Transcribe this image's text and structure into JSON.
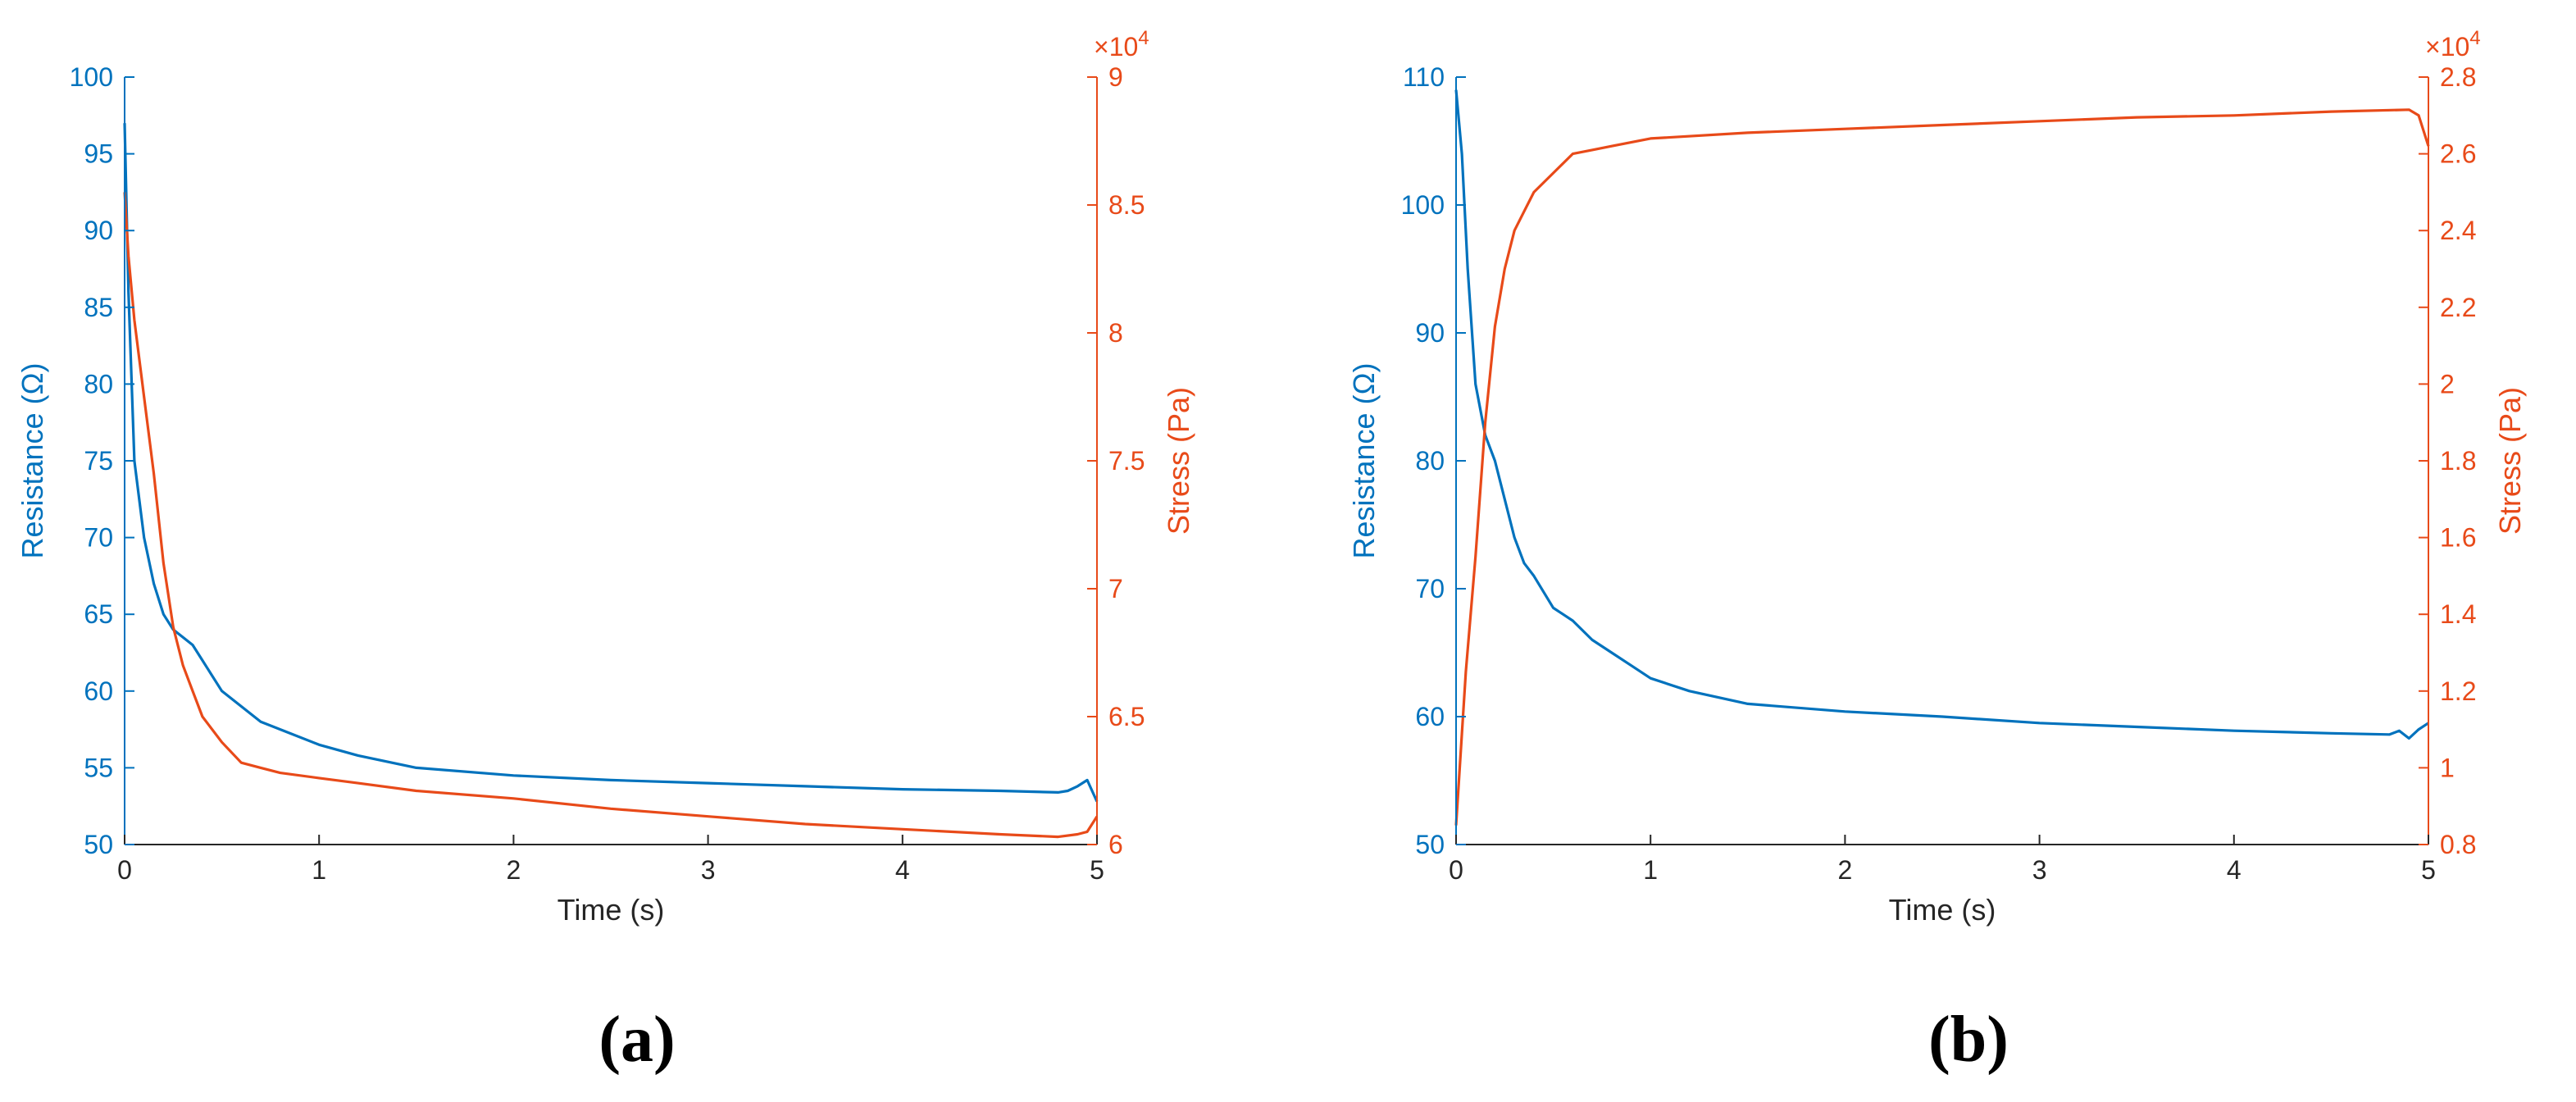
{
  "colors": {
    "resistance": "#0072BD",
    "stress": "#E84A19",
    "axis": "#262626"
  },
  "chart_data": [
    {
      "type": "line",
      "panel_label": "(a)",
      "xlabel": "Time (s)",
      "ylabel_left": "Resistance (Ω)",
      "ylabel_right": "Stress (Pa)",
      "right_multiplier_base": "×10",
      "right_multiplier_exp": "4",
      "xlim": [
        0,
        5
      ],
      "ylim_left": [
        50,
        100
      ],
      "ylim_right": [
        6,
        9
      ],
      "x_ticks": [
        "0",
        "1",
        "2",
        "3",
        "4",
        "5"
      ],
      "y_left_ticks": [
        "50",
        "55",
        "60",
        "65",
        "70",
        "75",
        "80",
        "85",
        "90",
        "95",
        "100"
      ],
      "y_right_ticks": [
        "6",
        "6.5",
        "7",
        "7.5",
        "8",
        "8.5",
        "9"
      ],
      "grid": false,
      "series": [
        {
          "axis": "left",
          "color": "#0072BD",
          "x": [
            0,
            0.02,
            0.05,
            0.1,
            0.15,
            0.2,
            0.25,
            0.3,
            0.35,
            0.4,
            0.5,
            0.6,
            0.7,
            0.8,
            1.0,
            1.2,
            1.5,
            2.0,
            2.5,
            3.0,
            3.5,
            4.0,
            4.5,
            4.8,
            4.85,
            4.9,
            4.95,
            5.0
          ],
          "y": [
            97,
            86,
            75,
            70,
            67,
            65,
            64,
            63.5,
            63,
            62,
            60,
            59,
            58,
            57.5,
            56.5,
            55.8,
            55,
            54.5,
            54.2,
            54,
            53.8,
            53.6,
            53.5,
            53.4,
            53.5,
            53.8,
            54.2,
            52.8
          ]
        },
        {
          "axis": "right",
          "color": "#E84A19",
          "x": [
            0,
            0.02,
            0.05,
            0.1,
            0.15,
            0.2,
            0.25,
            0.3,
            0.35,
            0.4,
            0.5,
            0.6,
            0.7,
            0.8,
            1.0,
            1.2,
            1.5,
            2.0,
            2.5,
            3.0,
            3.5,
            4.0,
            4.5,
            4.8,
            4.9,
            4.95,
            5.0
          ],
          "y": [
            8.55,
            8.3,
            8.05,
            7.75,
            7.45,
            7.1,
            6.85,
            6.7,
            6.6,
            6.5,
            6.4,
            6.32,
            6.3,
            6.28,
            6.26,
            6.24,
            6.21,
            6.18,
            6.14,
            6.11,
            6.08,
            6.06,
            6.04,
            6.03,
            6.04,
            6.05,
            6.11
          ]
        }
      ]
    },
    {
      "type": "line",
      "panel_label": "(b)",
      "xlabel": "Time (s)",
      "ylabel_left": "Resistance (Ω)",
      "ylabel_right": "Stress (Pa)",
      "right_multiplier_base": "×10",
      "right_multiplier_exp": "4",
      "xlim": [
        0,
        5
      ],
      "ylim_left": [
        50,
        110
      ],
      "ylim_right": [
        0.8,
        2.8
      ],
      "x_ticks": [
        "0",
        "1",
        "2",
        "3",
        "4",
        "5"
      ],
      "y_left_ticks": [
        "50",
        "60",
        "70",
        "80",
        "90",
        "100",
        "110"
      ],
      "y_right_ticks": [
        "0.8",
        "1",
        "1.2",
        "1.4",
        "1.6",
        "1.8",
        "2",
        "2.2",
        "2.4",
        "2.6",
        "2.8"
      ],
      "grid": false,
      "series": [
        {
          "axis": "left",
          "color": "#0072BD",
          "x": [
            0,
            0.03,
            0.06,
            0.1,
            0.15,
            0.2,
            0.25,
            0.3,
            0.35,
            0.4,
            0.5,
            0.55,
            0.6,
            0.7,
            0.8,
            0.9,
            1.0,
            1.2,
            1.5,
            2.0,
            2.5,
            3.0,
            3.5,
            4.0,
            4.5,
            4.8,
            4.85,
            4.9,
            4.95,
            5.0
          ],
          "y": [
            109,
            104,
            95,
            86,
            82,
            80,
            77,
            74,
            72,
            71,
            68.5,
            68,
            67.5,
            66,
            65,
            64,
            63,
            62,
            61,
            60.4,
            60,
            59.5,
            59.2,
            58.9,
            58.7,
            58.6,
            58.9,
            58.3,
            59,
            59.5
          ]
        },
        {
          "axis": "right",
          "color": "#E84A19",
          "x": [
            0,
            0.05,
            0.1,
            0.15,
            0.2,
            0.25,
            0.3,
            0.35,
            0.4,
            0.5,
            0.6,
            0.7,
            0.8,
            1.0,
            1.5,
            2.0,
            2.5,
            3.0,
            3.5,
            4.0,
            4.5,
            4.9,
            4.95,
            5.0
          ],
          "y": [
            0.85,
            1.25,
            1.55,
            1.9,
            2.15,
            2.3,
            2.4,
            2.45,
            2.5,
            2.55,
            2.6,
            2.61,
            2.62,
            2.64,
            2.655,
            2.665,
            2.675,
            2.685,
            2.695,
            2.7,
            2.71,
            2.715,
            2.7,
            2.62
          ]
        }
      ]
    }
  ]
}
